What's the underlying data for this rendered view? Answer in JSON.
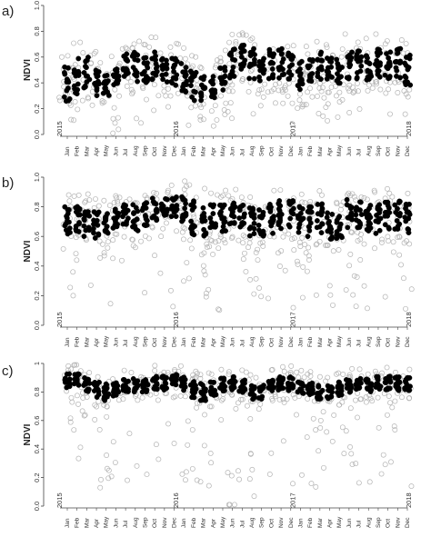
{
  "chart_data": [
    {
      "panel": "a)",
      "type": "scatter",
      "ylabel": "NDVI",
      "ylim": [
        0.0,
        1.0
      ],
      "yticks": [
        "0.0",
        "0.2",
        "0.4",
        "0.6",
        "0.8",
        "1.0"
      ],
      "years": [
        "2015",
        "2016",
        "2017",
        "2018"
      ],
      "months": [
        "Jan",
        "Feb",
        "Mar",
        "Apr",
        "May",
        "Jun",
        "Jul",
        "Aug",
        "Sep",
        "Oct",
        "Nov",
        "Dec"
      ],
      "series": [
        {
          "style": "filled",
          "color": "#000000",
          "values": [
            [
              1,
              0.4,
              0.15
            ],
            [
              2,
              0.45,
              0.15
            ],
            [
              3,
              0.48,
              0.12
            ],
            [
              4,
              0.42,
              0.12
            ],
            [
              5,
              0.38,
              0.08
            ],
            [
              6,
              0.45,
              0.07
            ],
            [
              7,
              0.55,
              0.1
            ],
            [
              8,
              0.52,
              0.12
            ],
            [
              9,
              0.5,
              0.12
            ],
            [
              10,
              0.53,
              0.12
            ],
            [
              11,
              0.52,
              0.12
            ],
            [
              12,
              0.5,
              0.12
            ],
            [
              13,
              0.45,
              0.12
            ],
            [
              14,
              0.38,
              0.12
            ],
            [
              15,
              0.35,
              0.1
            ],
            [
              16,
              0.38,
              0.1
            ],
            [
              17,
              0.45,
              0.12
            ],
            [
              18,
              0.55,
              0.12
            ],
            [
              19,
              0.6,
              0.1
            ],
            [
              20,
              0.55,
              0.12
            ],
            [
              21,
              0.52,
              0.12
            ],
            [
              22,
              0.55,
              0.12
            ],
            [
              23,
              0.55,
              0.12
            ],
            [
              24,
              0.52,
              0.12
            ],
            [
              25,
              0.45,
              0.12
            ],
            [
              26,
              0.5,
              0.1
            ],
            [
              27,
              0.52,
              0.12
            ],
            [
              28,
              0.5,
              0.1
            ],
            [
              29,
              0.48,
              0.12
            ],
            [
              30,
              0.55,
              0.12
            ],
            [
              31,
              0.55,
              0.12
            ],
            [
              32,
              0.52,
              0.12
            ],
            [
              33,
              0.55,
              0.12
            ],
            [
              34,
              0.55,
              0.12
            ],
            [
              35,
              0.55,
              0.12
            ],
            [
              36,
              0.5,
              0.12
            ]
          ]
        },
        {
          "style": "open",
          "color": "#b3b3b3",
          "values": [
            [
              1,
              0.45,
              0.2
            ],
            [
              6,
              0.3,
              0.35
            ],
            [
              14,
              0.35,
              0.3
            ],
            [
              18,
              0.45,
              0.3
            ],
            [
              25,
              0.35,
              0.35
            ],
            [
              27,
              0.4,
              0.3
            ],
            [
              30,
              0.4,
              0.3
            ]
          ]
        }
      ]
    },
    {
      "panel": "b)",
      "type": "scatter",
      "ylabel": "NDVI",
      "ylim": [
        0.0,
        1.0
      ],
      "yticks": [
        "0.0",
        "0.2",
        "0.4",
        "0.6",
        "0.8",
        "1.0"
      ],
      "years": [
        "2015",
        "2016",
        "2017",
        "2018"
      ],
      "months": [
        "Jan",
        "Feb",
        "Mar",
        "Apr",
        "May",
        "Jun",
        "Jul",
        "Aug",
        "Sep",
        "Oct",
        "Nov",
        "Dec"
      ],
      "series": [
        {
          "style": "filled",
          "color": "#000000",
          "values": [
            [
              1,
              0.7,
              0.1
            ],
            [
              2,
              0.72,
              0.1
            ],
            [
              3,
              0.7,
              0.1
            ],
            [
              4,
              0.68,
              0.1
            ],
            [
              5,
              0.68,
              0.08
            ],
            [
              6,
              0.72,
              0.07
            ],
            [
              7,
              0.75,
              0.08
            ],
            [
              8,
              0.72,
              0.1
            ],
            [
              9,
              0.75,
              0.08
            ],
            [
              10,
              0.78,
              0.08
            ],
            [
              11,
              0.8,
              0.07
            ],
            [
              12,
              0.8,
              0.07
            ],
            [
              13,
              0.78,
              0.1
            ],
            [
              14,
              0.72,
              0.12
            ],
            [
              15,
              0.7,
              0.12
            ],
            [
              16,
              0.72,
              0.1
            ],
            [
              17,
              0.72,
              0.1
            ],
            [
              18,
              0.75,
              0.08
            ],
            [
              19,
              0.72,
              0.1
            ],
            [
              20,
              0.7,
              0.1
            ],
            [
              21,
              0.7,
              0.1
            ],
            [
              22,
              0.72,
              0.1
            ],
            [
              23,
              0.75,
              0.1
            ],
            [
              24,
              0.75,
              0.1
            ],
            [
              25,
              0.72,
              0.1
            ],
            [
              26,
              0.7,
              0.1
            ],
            [
              27,
              0.72,
              0.1
            ],
            [
              28,
              0.68,
              0.1
            ],
            [
              29,
              0.65,
              0.1
            ],
            [
              30,
              0.75,
              0.1
            ],
            [
              31,
              0.75,
              0.1
            ],
            [
              32,
              0.72,
              0.1
            ],
            [
              33,
              0.72,
              0.1
            ],
            [
              34,
              0.75,
              0.1
            ],
            [
              35,
              0.75,
              0.1
            ],
            [
              36,
              0.72,
              0.1
            ]
          ]
        },
        {
          "style": "open",
          "color": "#b3b3b3",
          "values": [
            [
              2,
              0.55,
              0.3
            ],
            [
              5,
              0.5,
              0.35
            ],
            [
              13,
              0.55,
              0.35
            ],
            [
              16,
              0.45,
              0.35
            ],
            [
              20,
              0.55,
              0.35
            ],
            [
              25,
              0.45,
              0.4
            ],
            [
              30,
              0.55,
              0.35
            ],
            [
              35,
              0.55,
              0.35
            ]
          ]
        }
      ]
    },
    {
      "panel": "c)",
      "type": "scatter",
      "ylabel": "NDVI",
      "ylim": [
        0.0,
        1.0
      ],
      "yticks": [
        "0.0",
        "0.2",
        "0.4",
        "0.6",
        "0.8",
        "1"
      ],
      "years": [
        "2015",
        "2016",
        "2017",
        "2018"
      ],
      "months": [
        "Jan",
        "Feb",
        "Mar",
        "Apr",
        "May",
        "Jun",
        "Jul",
        "Aug",
        "Sep",
        "Oct",
        "Nov",
        "Dec"
      ],
      "series": [
        {
          "style": "filled",
          "color": "#000000",
          "values": [
            [
              1,
              0.88,
              0.05
            ],
            [
              2,
              0.88,
              0.05
            ],
            [
              3,
              0.85,
              0.05
            ],
            [
              4,
              0.82,
              0.06
            ],
            [
              5,
              0.8,
              0.06
            ],
            [
              6,
              0.82,
              0.05
            ],
            [
              7,
              0.85,
              0.05
            ],
            [
              8,
              0.85,
              0.05
            ],
            [
              9,
              0.85,
              0.05
            ],
            [
              10,
              0.86,
              0.05
            ],
            [
              11,
              0.86,
              0.05
            ],
            [
              12,
              0.88,
              0.05
            ],
            [
              13,
              0.86,
              0.05
            ],
            [
              14,
              0.82,
              0.06
            ],
            [
              15,
              0.8,
              0.06
            ],
            [
              16,
              0.82,
              0.05
            ],
            [
              17,
              0.85,
              0.05
            ],
            [
              18,
              0.86,
              0.05
            ],
            [
              19,
              0.84,
              0.05
            ],
            [
              20,
              0.8,
              0.05
            ],
            [
              21,
              0.8,
              0.05
            ],
            [
              22,
              0.84,
              0.05
            ],
            [
              23,
              0.86,
              0.05
            ],
            [
              24,
              0.86,
              0.05
            ],
            [
              25,
              0.84,
              0.05
            ],
            [
              26,
              0.82,
              0.05
            ],
            [
              27,
              0.8,
              0.05
            ],
            [
              28,
              0.8,
              0.05
            ],
            [
              29,
              0.82,
              0.05
            ],
            [
              30,
              0.84,
              0.05
            ],
            [
              31,
              0.86,
              0.05
            ],
            [
              32,
              0.85,
              0.05
            ],
            [
              33,
              0.86,
              0.05
            ],
            [
              34,
              0.86,
              0.05
            ],
            [
              35,
              0.86,
              0.05
            ],
            [
              36,
              0.86,
              0.05
            ]
          ]
        },
        {
          "style": "open",
          "color": "#b3b3b3",
          "values": [
            [
              2,
              0.55,
              0.35
            ],
            [
              5,
              0.45,
              0.4
            ],
            [
              14,
              0.4,
              0.4
            ],
            [
              18,
              0.35,
              0.4
            ],
            [
              20,
              0.45,
              0.4
            ],
            [
              25,
              0.4,
              0.4
            ],
            [
              27,
              0.45,
              0.4
            ],
            [
              30,
              0.5,
              0.35
            ],
            [
              34,
              0.55,
              0.35
            ]
          ]
        }
      ]
    }
  ]
}
